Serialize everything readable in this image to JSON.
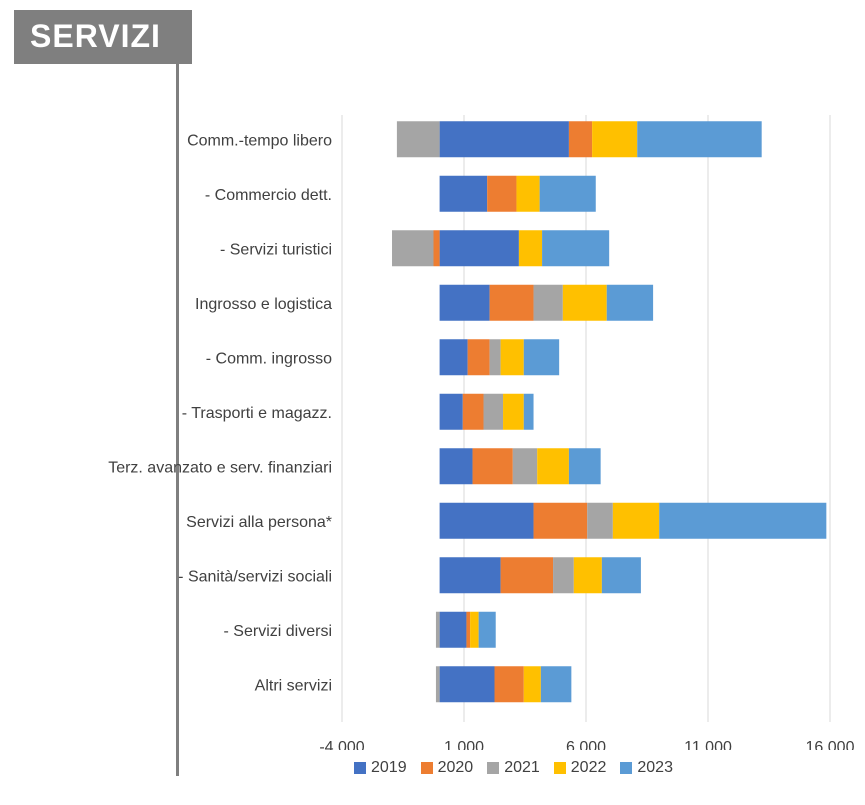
{
  "header": {
    "title": "SERVIZI"
  },
  "chart_data": {
    "type": "bar",
    "orientation": "horizontal",
    "stacked": true,
    "categories": [
      "Comm.-tempo libero",
      "- Commercio dett.",
      "- Servizi turistici",
      "Ingrosso e logistica",
      "- Comm. ingrosso",
      "- Trasporti e magazz.",
      "Terz. avanzato e serv. finanziari",
      "Servizi alla persona*",
      "- Sanità/servizi sociali",
      "- Servizi diversi",
      "Altri servizi"
    ],
    "series": [
      {
        "name": "2019",
        "color": "#4472C4",
        "values": [
          5300,
          1950,
          3250,
          2050,
          1150,
          950,
          1350,
          3850,
          2500,
          1100,
          2250
        ]
      },
      {
        "name": "2020",
        "color": "#ED7D31",
        "values": [
          950,
          1200,
          -250,
          1800,
          900,
          850,
          1650,
          2200,
          2150,
          150,
          1200
        ]
      },
      {
        "name": "2021",
        "color": "#A5A5A5",
        "values": [
          -1750,
          0,
          -1700,
          1200,
          450,
          800,
          1000,
          1050,
          850,
          -150,
          -150
        ]
      },
      {
        "name": "2022",
        "color": "#FFC000",
        "values": [
          1850,
          950,
          950,
          1800,
          950,
          850,
          1300,
          1900,
          1150,
          350,
          700
        ]
      },
      {
        "name": "2023",
        "color": "#5B9BD5",
        "values": [
          5100,
          2300,
          2750,
          1900,
          1450,
          400,
          1300,
          6850,
          1600,
          700,
          1250
        ]
      }
    ],
    "x_ticks": [
      "-4.000",
      "1.000",
      "6.000",
      "11.000",
      "16.000"
    ],
    "x_tick_values": [
      -4000,
      1000,
      6000,
      11000,
      16000
    ],
    "xlim": [
      -4000,
      16000
    ],
    "grid": "vertical",
    "legend_position": "bottom",
    "xlabel": "",
    "ylabel": ""
  }
}
